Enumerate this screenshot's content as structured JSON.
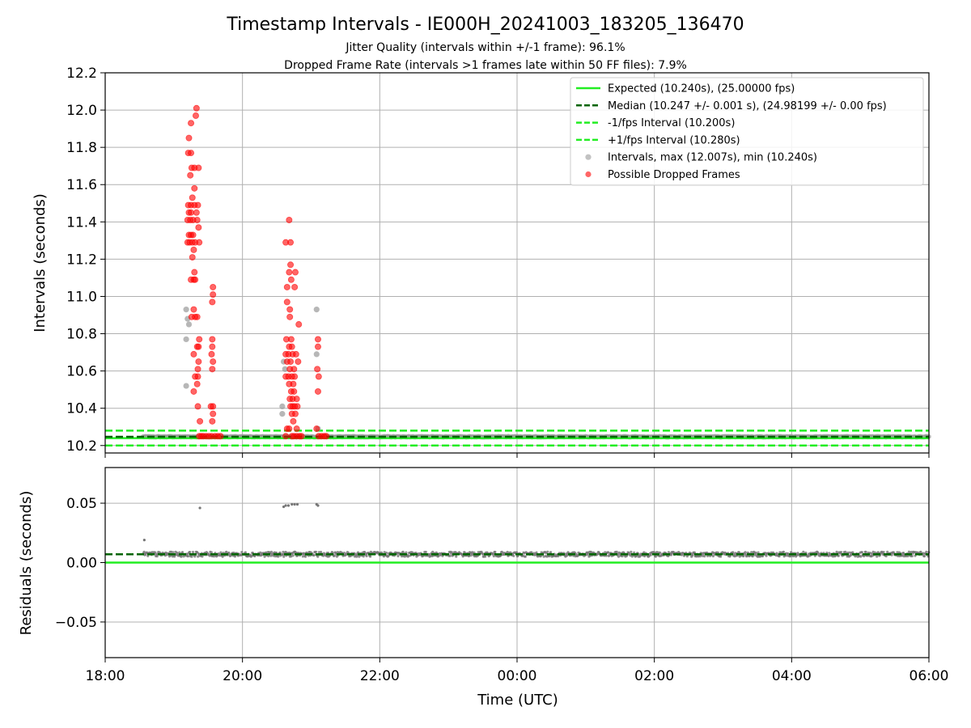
{
  "figure": {
    "title": "Timestamp Intervals - IE000H_20241003_183205_136470",
    "subtitle1": "Jitter Quality (intervals within +/-1 frame): 96.1%",
    "subtitle2": "Dropped Frame Rate (intervals >1 frames late within 50 FF files): 7.9%"
  },
  "chart_data": [
    {
      "type": "scatter",
      "ylabel": "Intervals (seconds)",
      "ylim": [
        10.16,
        12.2
      ],
      "yticks": [
        10.2,
        10.4,
        10.6,
        10.8,
        11.0,
        11.2,
        11.4,
        11.6,
        11.8,
        12.0,
        12.2
      ],
      "ytick_labels": [
        "10.2",
        "10.4",
        "10.6",
        "10.8",
        "11.0",
        "11.2",
        "11.4",
        "11.6",
        "11.8",
        "12.0",
        "12.2"
      ],
      "xlim_hours": [
        18.0,
        30.0
      ],
      "grid": true,
      "legend_position": "top-right",
      "reference_lines": [
        {
          "label": "Expected (10.240s), (25.00000 fps)",
          "value": 10.24,
          "style": "solid",
          "color": "#22ee22"
        },
        {
          "label": "Median (10.247 +/- 0.001 s), (24.98199 +/- 0.00 fps)",
          "value": 10.247,
          "style": "dashed",
          "color": "#006400"
        },
        {
          "label": "-1/fps Interval (10.200s)",
          "value": 10.2,
          "style": "dashed",
          "color": "#22ee22"
        },
        {
          "label": "+1/fps Interval (10.280s)",
          "value": 10.28,
          "style": "dashed",
          "color": "#22ee22"
        }
      ],
      "series": [
        {
          "name": "Intervals, max (12.007s), min (10.240s)",
          "color": "#999999",
          "baseline": {
            "x_start": 18.55,
            "x_end": 30.0,
            "y": 10.247
          },
          "outliers": [
            [
              19.18,
              10.93
            ],
            [
              19.18,
              10.77
            ],
            [
              19.18,
              10.52
            ],
            [
              19.2,
              10.88
            ],
            [
              19.22,
              10.85
            ],
            [
              20.58,
              10.41
            ],
            [
              20.58,
              10.37
            ],
            [
              20.6,
              10.65
            ],
            [
              20.62,
              10.61
            ],
            [
              21.08,
              10.93
            ],
            [
              21.08,
              10.69
            ],
            [
              21.1,
              10.29
            ]
          ]
        },
        {
          "name": "Possible Dropped Frames",
          "color": "#ff0000",
          "points": [
            [
              19.33,
              12.01
            ],
            [
              19.32,
              11.97
            ],
            [
              19.25,
              11.93
            ],
            [
              19.22,
              11.85
            ],
            [
              19.21,
              11.77
            ],
            [
              19.25,
              11.77
            ],
            [
              19.26,
              11.69
            ],
            [
              19.3,
              11.69
            ],
            [
              19.36,
              11.69
            ],
            [
              19.24,
              11.65
            ],
            [
              19.3,
              11.58
            ],
            [
              19.27,
              11.53
            ],
            [
              19.21,
              11.49
            ],
            [
              19.25,
              11.49
            ],
            [
              19.3,
              11.49
            ],
            [
              19.35,
              11.49
            ],
            [
              19.22,
              11.45
            ],
            [
              19.25,
              11.45
            ],
            [
              19.33,
              11.45
            ],
            [
              19.2,
              11.41
            ],
            [
              19.24,
              11.41
            ],
            [
              19.28,
              11.41
            ],
            [
              19.34,
              11.41
            ],
            [
              19.36,
              11.37
            ],
            [
              19.22,
              11.33
            ],
            [
              19.25,
              11.33
            ],
            [
              19.28,
              11.33
            ],
            [
              19.2,
              11.29
            ],
            [
              19.23,
              11.29
            ],
            [
              19.27,
              11.29
            ],
            [
              19.31,
              11.29
            ],
            [
              19.37,
              11.29
            ],
            [
              19.29,
              11.25
            ],
            [
              19.27,
              11.21
            ],
            [
              19.3,
              11.13
            ],
            [
              19.29,
              11.09
            ],
            [
              19.25,
              11.09
            ],
            [
              19.31,
              11.09
            ],
            [
              19.57,
              11.05
            ],
            [
              19.57,
              11.01
            ],
            [
              19.56,
              10.97
            ],
            [
              19.26,
              10.89
            ],
            [
              19.31,
              10.89
            ],
            [
              19.34,
              10.89
            ],
            [
              19.29,
              10.93
            ],
            [
              19.37,
              10.77
            ],
            [
              19.56,
              10.77
            ],
            [
              19.34,
              10.73
            ],
            [
              19.36,
              10.73
            ],
            [
              19.56,
              10.73
            ],
            [
              19.55,
              10.69
            ],
            [
              19.29,
              10.69
            ],
            [
              19.36,
              10.65
            ],
            [
              19.57,
              10.65
            ],
            [
              19.35,
              10.61
            ],
            [
              19.56,
              10.61
            ],
            [
              19.31,
              10.57
            ],
            [
              19.35,
              10.57
            ],
            [
              19.34,
              10.53
            ],
            [
              19.29,
              10.49
            ],
            [
              19.35,
              10.41
            ],
            [
              19.54,
              10.41
            ],
            [
              19.57,
              10.41
            ],
            [
              19.57,
              10.37
            ],
            [
              19.38,
              10.33
            ],
            [
              19.56,
              10.33
            ],
            [
              19.37,
              10.25
            ],
            [
              19.4,
              10.25
            ],
            [
              19.43,
              10.25
            ],
            [
              19.47,
              10.25
            ],
            [
              19.51,
              10.25
            ],
            [
              19.55,
              10.25
            ],
            [
              19.6,
              10.25
            ],
            [
              19.64,
              10.25
            ],
            [
              19.68,
              10.25
            ],
            [
              20.68,
              11.41
            ],
            [
              20.63,
              11.29
            ],
            [
              20.7,
              11.29
            ],
            [
              20.7,
              11.17
            ],
            [
              20.68,
              11.13
            ],
            [
              20.77,
              11.13
            ],
            [
              20.71,
              11.09
            ],
            [
              20.65,
              11.05
            ],
            [
              20.76,
              11.05
            ],
            [
              20.65,
              10.97
            ],
            [
              20.69,
              10.93
            ],
            [
              20.69,
              10.89
            ],
            [
              20.82,
              10.85
            ],
            [
              20.64,
              10.77
            ],
            [
              20.71,
              10.77
            ],
            [
              20.68,
              10.73
            ],
            [
              20.72,
              10.73
            ],
            [
              20.63,
              10.69
            ],
            [
              20.67,
              10.69
            ],
            [
              20.73,
              10.69
            ],
            [
              20.78,
              10.69
            ],
            [
              20.65,
              10.65
            ],
            [
              20.7,
              10.65
            ],
            [
              20.81,
              10.65
            ],
            [
              20.69,
              10.61
            ],
            [
              20.75,
              10.61
            ],
            [
              20.63,
              10.57
            ],
            [
              20.67,
              10.57
            ],
            [
              20.72,
              10.57
            ],
            [
              20.76,
              10.57
            ],
            [
              20.68,
              10.53
            ],
            [
              20.74,
              10.53
            ],
            [
              20.71,
              10.49
            ],
            [
              20.75,
              10.49
            ],
            [
              20.69,
              10.45
            ],
            [
              20.73,
              10.45
            ],
            [
              20.79,
              10.45
            ],
            [
              20.7,
              10.41
            ],
            [
              20.73,
              10.41
            ],
            [
              20.76,
              10.41
            ],
            [
              20.8,
              10.41
            ],
            [
              20.72,
              10.37
            ],
            [
              20.77,
              10.37
            ],
            [
              20.74,
              10.33
            ],
            [
              20.65,
              10.29
            ],
            [
              20.68,
              10.29
            ],
            [
              20.79,
              10.29
            ],
            [
              20.63,
              10.25
            ],
            [
              20.72,
              10.25
            ],
            [
              20.75,
              10.25
            ],
            [
              20.79,
              10.25
            ],
            [
              20.83,
              10.25
            ],
            [
              20.86,
              10.25
            ],
            [
              21.1,
              10.77
            ],
            [
              21.1,
              10.73
            ],
            [
              21.09,
              10.61
            ],
            [
              21.11,
              10.57
            ],
            [
              21.1,
              10.49
            ],
            [
              21.08,
              10.29
            ],
            [
              21.11,
              10.25
            ],
            [
              21.15,
              10.25
            ],
            [
              21.19,
              10.25
            ],
            [
              21.22,
              10.25
            ]
          ]
        }
      ]
    },
    {
      "type": "scatter",
      "ylabel": "Residuals (seconds)",
      "xlabel": "Time (UTC)",
      "ylim": [
        -0.08,
        0.08
      ],
      "yticks": [
        -0.05,
        0.0,
        0.05
      ],
      "ytick_labels": [
        "−0.05",
        "0.00",
        "0.05"
      ],
      "xlim_hours": [
        18.0,
        30.0
      ],
      "xticks": [
        18,
        20,
        22,
        24,
        26,
        28,
        30
      ],
      "xtick_labels": [
        "18:00",
        "20:00",
        "22:00",
        "00:00",
        "02:00",
        "04:00",
        "06:00"
      ],
      "grid": true,
      "reference_lines": [
        {
          "value": 0.0,
          "style": "solid",
          "color": "#22ee22"
        },
        {
          "value": 0.007,
          "style": "dashed",
          "color": "#006400"
        }
      ],
      "series": [
        {
          "color": "#777777",
          "band": {
            "x_start": 18.55,
            "x_end": 30.0,
            "y_center": 0.007,
            "spread": 0.002
          },
          "outliers": [
            [
              18.57,
              0.019
            ],
            [
              19.38,
              0.046
            ],
            [
              20.6,
              0.047
            ],
            [
              20.63,
              0.048
            ],
            [
              20.67,
              0.048
            ],
            [
              20.72,
              0.049
            ],
            [
              20.76,
              0.049
            ],
            [
              20.8,
              0.049
            ],
            [
              21.08,
              0.049
            ],
            [
              21.1,
              0.048
            ]
          ]
        }
      ]
    }
  ]
}
